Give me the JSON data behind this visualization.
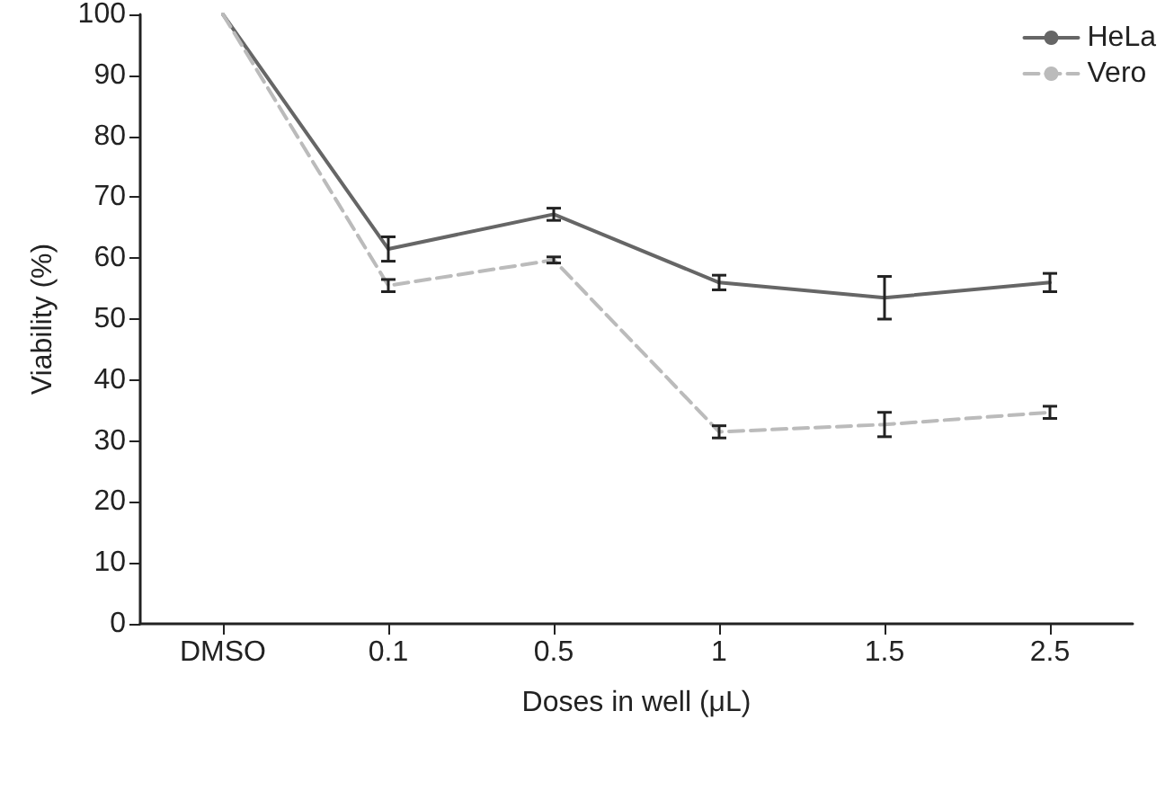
{
  "chart_data": {
    "type": "line",
    "xlabel": "Doses in well (μL)",
    "ylabel": "Viability (%)",
    "categories": [
      "DMSO",
      "0.1",
      "0.5",
      "1",
      "1.5",
      "2.5"
    ],
    "series": [
      {
        "name": "HeLa",
        "color": "#666666",
        "line_style": "solid",
        "values": [
          100,
          61.5,
          67.2,
          56,
          53.5,
          56
        ],
        "errors": [
          null,
          2,
          1,
          1.2,
          3.5,
          1.5
        ]
      },
      {
        "name": "Vero",
        "color": "#bbbbbb",
        "line_style": "dashed",
        "values": [
          100,
          55.5,
          59.7,
          31.5,
          32.7,
          34.7
        ],
        "errors": [
          null,
          1,
          0.5,
          1,
          2,
          1
        ]
      }
    ],
    "ylim": [
      0,
      100
    ],
    "yticks": [
      0,
      10,
      20,
      30,
      40,
      50,
      60,
      70,
      80,
      90,
      100
    ],
    "grid": false,
    "legend": "top right",
    "marker": "none"
  }
}
